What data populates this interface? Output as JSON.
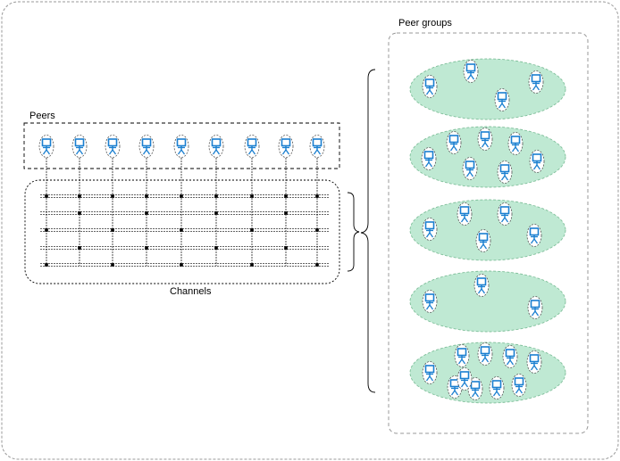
{
  "labels": {
    "peers": "Peers",
    "channels": "Channels",
    "peer_groups": "Peer groups"
  },
  "colors": {
    "frame_stroke": "#999999",
    "channel_line": "#333333",
    "group_fill": "#bfe9d3",
    "group_stroke": "#7fbf9a",
    "peer_icon": "#1a7fd0"
  },
  "icons": {
    "peer": "peer-computer-user-icon"
  },
  "diagram": {
    "peer_count": 9,
    "channel_count": 5,
    "peer_groups": [
      {
        "peer_count": 4
      },
      {
        "peer_count": 7
      },
      {
        "peer_count": 5
      },
      {
        "peer_count": 3
      },
      {
        "peer_count": 10
      }
    ]
  }
}
